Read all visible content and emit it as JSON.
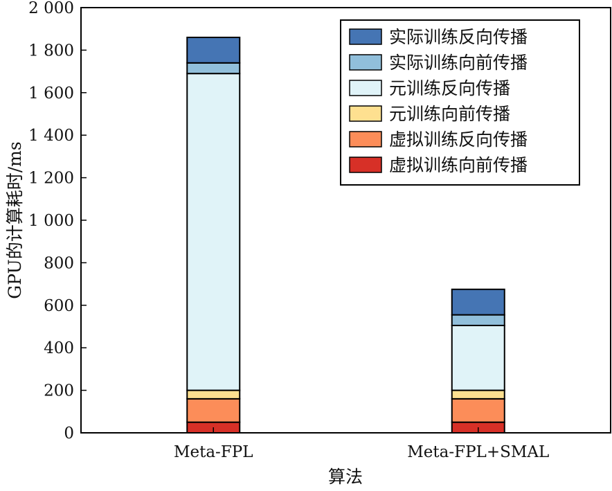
{
  "chart_data": {
    "type": "bar",
    "stacked": true,
    "title": "",
    "xlabel": "算法",
    "ylabel": "GPU的计算耗时/ms",
    "ylim": [
      0,
      2000
    ],
    "yticks": [
      0,
      200,
      400,
      600,
      800,
      1000,
      1200,
      1400,
      1600,
      1800,
      2000
    ],
    "ytick_labels": [
      "0",
      "200",
      "400",
      "600",
      "800",
      "1 000",
      "1 200",
      "1 400",
      "1 600",
      "1 800",
      "2 000"
    ],
    "categories": [
      "Meta-FPL",
      "Meta-FPL+SMAL"
    ],
    "series": [
      {
        "name": "虚拟训练向前传播",
        "color": "#d73027",
        "values": [
          50,
          50
        ]
      },
      {
        "name": "虚拟训练反向传播",
        "color": "#fc8d59",
        "values": [
          110,
          110
        ]
      },
      {
        "name": "元训练向前传播",
        "color": "#fee090",
        "values": [
          40,
          40
        ]
      },
      {
        "name": "元训练反向传播",
        "color": "#e0f3f8",
        "values": [
          1490,
          305
        ]
      },
      {
        "name": "实际训练向前传播",
        "color": "#91bfdb",
        "values": [
          50,
          50
        ]
      },
      {
        "name": "实际训练反向传播",
        "color": "#4575b4",
        "values": [
          120,
          120
        ]
      }
    ],
    "legend_order": [
      "实际训练反向传播",
      "实际训练向前传播",
      "元训练反向传播",
      "元训练向前传播",
      "虚拟训练反向传播",
      "虚拟训练向前传播"
    ],
    "legend_position": "top-right",
    "grid": false
  }
}
